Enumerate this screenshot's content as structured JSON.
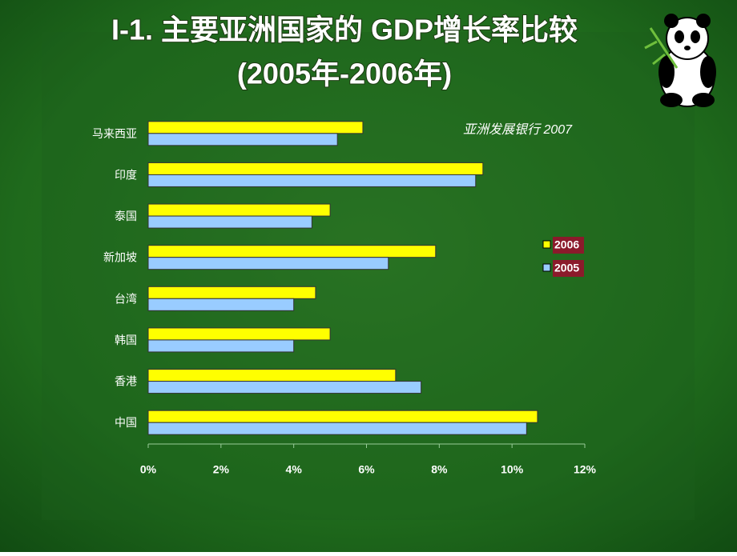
{
  "chart_data": {
    "type": "hbar",
    "title": "I-1. 主要亚洲国家的 GDP增长率比较",
    "subtitle": "(2005年-2006年)",
    "annotation": "亚洲发展银行 2007",
    "categories": [
      "马来西亚",
      "印度",
      "泰国",
      "新加坡",
      "台湾",
      "韩国",
      "香港",
      "中国"
    ],
    "series": [
      {
        "name": "2006",
        "color": "#ffff00",
        "values": [
          5.9,
          9.2,
          5.0,
          7.9,
          4.6,
          5.0,
          6.8,
          10.7
        ]
      },
      {
        "name": "2005",
        "color": "#99ccff",
        "values": [
          5.2,
          9.0,
          4.5,
          6.6,
          4.0,
          4.0,
          7.5,
          10.4
        ]
      }
    ],
    "xlim": [
      0,
      12
    ],
    "xticks": [
      {
        "value": 0,
        "label": "0%"
      },
      {
        "value": 2,
        "label": "2%"
      },
      {
        "value": 4,
        "label": "4%"
      },
      {
        "value": 6,
        "label": "6%"
      },
      {
        "value": 8,
        "label": "8%"
      },
      {
        "value": 10,
        "label": "10%"
      },
      {
        "value": 12,
        "label": "12%"
      }
    ],
    "legend": "right"
  }
}
